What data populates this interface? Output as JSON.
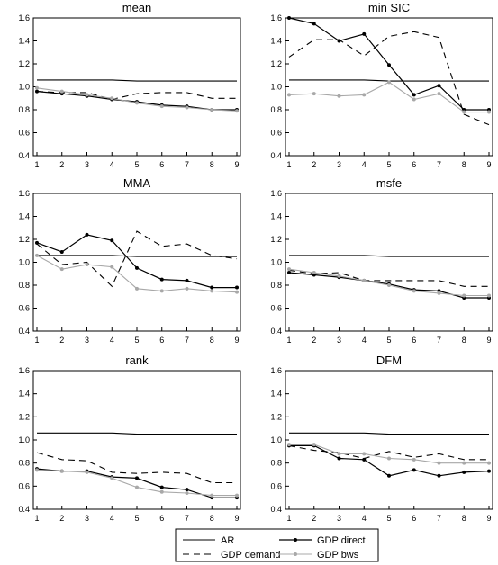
{
  "chart_data": [
    {
      "type": "line",
      "title": "mean",
      "x": [
        1,
        2,
        3,
        4,
        5,
        6,
        7,
        8,
        9
      ],
      "ylim": [
        0.4,
        1.6
      ],
      "yticks": [
        "0.4",
        "0.6",
        "0.8",
        "1.0",
        "1.2",
        "1.4",
        "1.6"
      ],
      "xticks": [
        "1",
        "2",
        "3",
        "4",
        "5",
        "6",
        "7",
        "8",
        "9"
      ],
      "series": [
        {
          "name": "AR",
          "values": [
            1.06,
            1.06,
            1.06,
            1.06,
            1.05,
            1.05,
            1.05,
            1.05,
            1.05
          ]
        },
        {
          "name": "GDP demand",
          "values": [
            0.96,
            0.95,
            0.95,
            0.89,
            0.94,
            0.95,
            0.95,
            0.9,
            0.9
          ]
        },
        {
          "name": "GDP direct",
          "values": [
            0.96,
            0.94,
            0.92,
            0.89,
            0.87,
            0.84,
            0.83,
            0.8,
            0.8
          ]
        },
        {
          "name": "GDP bws",
          "values": [
            0.99,
            0.96,
            0.93,
            0.9,
            0.86,
            0.83,
            0.82,
            0.8,
            0.79
          ]
        }
      ]
    },
    {
      "type": "line",
      "title": "min SIC",
      "x": [
        1,
        2,
        3,
        4,
        5,
        6,
        7,
        8,
        9
      ],
      "ylim": [
        0.4,
        1.6
      ],
      "yticks": [
        "0.4",
        "0.6",
        "0.8",
        "1.0",
        "1.2",
        "1.4",
        "1.6"
      ],
      "xticks": [
        "1",
        "2",
        "3",
        "4",
        "5",
        "6",
        "7",
        "8",
        "9"
      ],
      "series": [
        {
          "name": "AR",
          "values": [
            1.06,
            1.06,
            1.06,
            1.06,
            1.05,
            1.05,
            1.05,
            1.05,
            1.05
          ]
        },
        {
          "name": "GDP demand",
          "values": [
            1.26,
            1.41,
            1.41,
            1.27,
            1.44,
            1.48,
            1.43,
            0.76,
            0.67
          ]
        },
        {
          "name": "GDP direct",
          "values": [
            1.6,
            1.55,
            1.4,
            1.46,
            1.19,
            0.93,
            1.01,
            0.8,
            0.8
          ]
        },
        {
          "name": "GDP bws",
          "values": [
            0.93,
            0.94,
            0.92,
            0.93,
            1.04,
            0.89,
            0.94,
            0.78,
            0.78
          ]
        }
      ]
    },
    {
      "type": "line",
      "title": "MMA",
      "x": [
        1,
        2,
        3,
        4,
        5,
        6,
        7,
        8,
        9
      ],
      "ylim": [
        0.4,
        1.6
      ],
      "yticks": [
        "0.4",
        "0.6",
        "0.8",
        "1.0",
        "1.2",
        "1.4",
        "1.6"
      ],
      "xticks": [
        "1",
        "2",
        "3",
        "4",
        "5",
        "6",
        "7",
        "8",
        "9"
      ],
      "series": [
        {
          "name": "AR",
          "values": [
            1.06,
            1.06,
            1.06,
            1.06,
            1.05,
            1.05,
            1.05,
            1.05,
            1.05
          ]
        },
        {
          "name": "GDP demand",
          "values": [
            1.16,
            0.98,
            1.0,
            0.79,
            1.27,
            1.14,
            1.16,
            1.06,
            1.03
          ]
        },
        {
          "name": "GDP direct",
          "values": [
            1.17,
            1.09,
            1.24,
            1.19,
            0.95,
            0.85,
            0.84,
            0.78,
            0.78
          ]
        },
        {
          "name": "GDP bws",
          "values": [
            1.06,
            0.94,
            0.98,
            0.96,
            0.77,
            0.75,
            0.77,
            0.75,
            0.74
          ]
        }
      ]
    },
    {
      "type": "line",
      "title": "msfe",
      "x": [
        1,
        2,
        3,
        4,
        5,
        6,
        7,
        8,
        9
      ],
      "ylim": [
        0.4,
        1.6
      ],
      "yticks": [
        "0.4",
        "0.6",
        "0.8",
        "1.0",
        "1.2",
        "1.4",
        "1.6"
      ],
      "xticks": [
        "1",
        "2",
        "3",
        "4",
        "5",
        "6",
        "7",
        "8",
        "9"
      ],
      "series": [
        {
          "name": "AR",
          "values": [
            1.06,
            1.06,
            1.06,
            1.06,
            1.05,
            1.05,
            1.05,
            1.05,
            1.05
          ]
        },
        {
          "name": "GDP demand",
          "values": [
            0.93,
            0.9,
            0.91,
            0.84,
            0.84,
            0.84,
            0.84,
            0.79,
            0.79
          ]
        },
        {
          "name": "GDP direct",
          "values": [
            0.91,
            0.89,
            0.87,
            0.84,
            0.81,
            0.76,
            0.75,
            0.69,
            0.69
          ]
        },
        {
          "name": "GDP bws",
          "values": [
            0.94,
            0.91,
            0.88,
            0.84,
            0.8,
            0.75,
            0.73,
            0.71,
            0.71
          ]
        }
      ]
    },
    {
      "type": "line",
      "title": "rank",
      "x": [
        1,
        2,
        3,
        4,
        5,
        6,
        7,
        8,
        9
      ],
      "ylim": [
        0.4,
        1.6
      ],
      "yticks": [
        "0.4",
        "0.6",
        "0.8",
        "1.0",
        "1.2",
        "1.4",
        "1.6"
      ],
      "xticks": [
        "1",
        "2",
        "3",
        "4",
        "5",
        "6",
        "7",
        "8",
        "9"
      ],
      "series": [
        {
          "name": "AR",
          "values": [
            1.06,
            1.06,
            1.06,
            1.06,
            1.05,
            1.05,
            1.05,
            1.05,
            1.05
          ]
        },
        {
          "name": "GDP demand",
          "values": [
            0.89,
            0.83,
            0.82,
            0.72,
            0.71,
            0.72,
            0.71,
            0.63,
            0.63
          ]
        },
        {
          "name": "GDP direct",
          "values": [
            0.75,
            0.73,
            0.73,
            0.68,
            0.67,
            0.59,
            0.57,
            0.5,
            0.5
          ]
        },
        {
          "name": "GDP bws",
          "values": [
            0.74,
            0.73,
            0.72,
            0.67,
            0.59,
            0.55,
            0.54,
            0.52,
            0.52
          ]
        }
      ]
    },
    {
      "type": "line",
      "title": "DFM",
      "x": [
        1,
        2,
        3,
        4,
        5,
        6,
        7,
        8,
        9
      ],
      "ylim": [
        0.4,
        1.6
      ],
      "yticks": [
        "0.4",
        "0.6",
        "0.8",
        "1.0",
        "1.2",
        "1.4",
        "1.6"
      ],
      "xticks": [
        "1",
        "2",
        "3",
        "4",
        "5",
        "6",
        "7",
        "8",
        "9"
      ],
      "series": [
        {
          "name": "AR",
          "values": [
            1.06,
            1.06,
            1.06,
            1.06,
            1.05,
            1.05,
            1.05,
            1.05,
            1.05
          ]
        },
        {
          "name": "GDP demand",
          "values": [
            0.95,
            0.91,
            0.89,
            0.84,
            0.9,
            0.85,
            0.88,
            0.83,
            0.83
          ]
        },
        {
          "name": "GDP direct",
          "values": [
            0.95,
            0.95,
            0.84,
            0.83,
            0.69,
            0.74,
            0.69,
            0.72,
            0.73
          ]
        },
        {
          "name": "GDP bws",
          "values": [
            0.96,
            0.96,
            0.88,
            0.88,
            0.84,
            0.83,
            0.8,
            0.8,
            0.8
          ]
        }
      ]
    }
  ],
  "legend": {
    "items": [
      {
        "label": "AR",
        "style": "solid"
      },
      {
        "label": "GDP direct",
        "style": "solid-marker"
      },
      {
        "label": "GDP demand",
        "style": "dashed"
      },
      {
        "label": "GDP bws",
        "style": "gray-marker"
      }
    ]
  },
  "colors": {
    "black": "#000000",
    "gray": "#a8a8a8"
  }
}
